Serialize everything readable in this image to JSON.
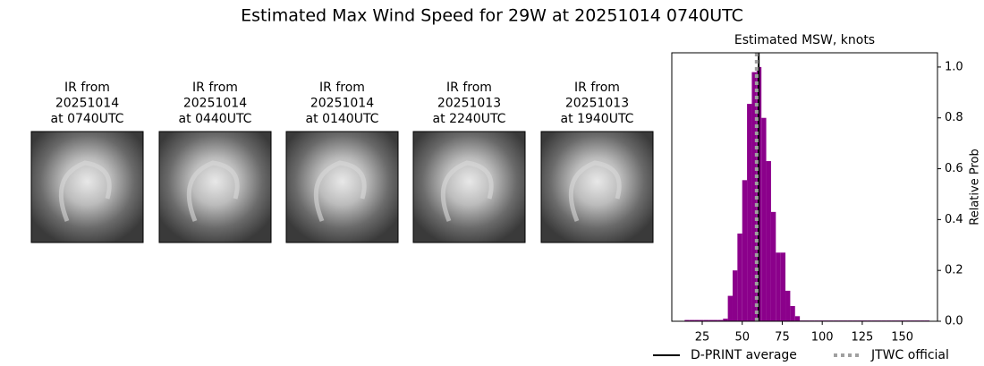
{
  "title": "Estimated Max Wind Speed for 29W at 20251014 0740UTC",
  "panels": [
    {
      "lines": [
        "IR from",
        "20251014",
        "at 0740UTC"
      ]
    },
    {
      "lines": [
        "IR from",
        "20251014",
        "at 0440UTC"
      ]
    },
    {
      "lines": [
        "IR from",
        "20251014",
        "at 0140UTC"
      ]
    },
    {
      "lines": [
        "IR from",
        "20251013",
        "at 2240UTC"
      ]
    },
    {
      "lines": [
        "IR from",
        "20251013",
        "at 1940UTC"
      ]
    }
  ],
  "chart_data": {
    "type": "histogram",
    "title": "Estimated MSW, knots",
    "ylabel": "Relative Prob",
    "color": "#8b008b",
    "bins": [
      14,
      17,
      20,
      23,
      26,
      29,
      32,
      35,
      38,
      41,
      44,
      47,
      50,
      53,
      56,
      59,
      62,
      65,
      68,
      71,
      74,
      77,
      80,
      83,
      86,
      89,
      92,
      95,
      98,
      101,
      104,
      107,
      110,
      113,
      116,
      119,
      122,
      125,
      128,
      131,
      134,
      137,
      140,
      143,
      146,
      149,
      152,
      155,
      158,
      161,
      164,
      167
    ],
    "values": [
      0.005,
      0.005,
      0.005,
      0.005,
      0.005,
      0.005,
      0.005,
      0.005,
      0.01,
      0.1,
      0.2,
      0.345,
      0.555,
      0.855,
      0.98,
      1.0,
      0.8,
      0.63,
      0.43,
      0.27,
      0.27,
      0.12,
      0.06,
      0.02,
      0.003,
      0.003,
      0.003,
      0.003,
      0.003,
      0.003,
      0.003,
      0.003,
      0.003,
      0.003,
      0.003,
      0.003,
      0.003,
      0.003,
      0.003,
      0.003,
      0.003,
      0.003,
      0.003,
      0.003,
      0.003,
      0.003,
      0.003,
      0.003,
      0.003,
      0.003,
      0.003
    ],
    "xlim": [
      6,
      172
    ],
    "ylim": [
      0,
      1.056
    ],
    "xticks": [
      25,
      50,
      75,
      100,
      125,
      150
    ],
    "yticks": [
      {
        "value": 0,
        "label": "0.0"
      },
      {
        "value": 0.2,
        "label": "0.2"
      },
      {
        "value": 0.4,
        "label": "0.4"
      },
      {
        "value": 0.6,
        "label": "0.6"
      },
      {
        "value": 0.8,
        "label": "0.8"
      },
      {
        "value": 1.0,
        "label": "1.0"
      }
    ],
    "y_axis_side": "right",
    "lines": [
      {
        "name": "D-PRINT average",
        "value": 60.3,
        "color": "#000000",
        "style": "solid"
      },
      {
        "name": "JTWC official",
        "value": 59,
        "color": "#a0a0a0",
        "style": "dotted"
      }
    ]
  }
}
